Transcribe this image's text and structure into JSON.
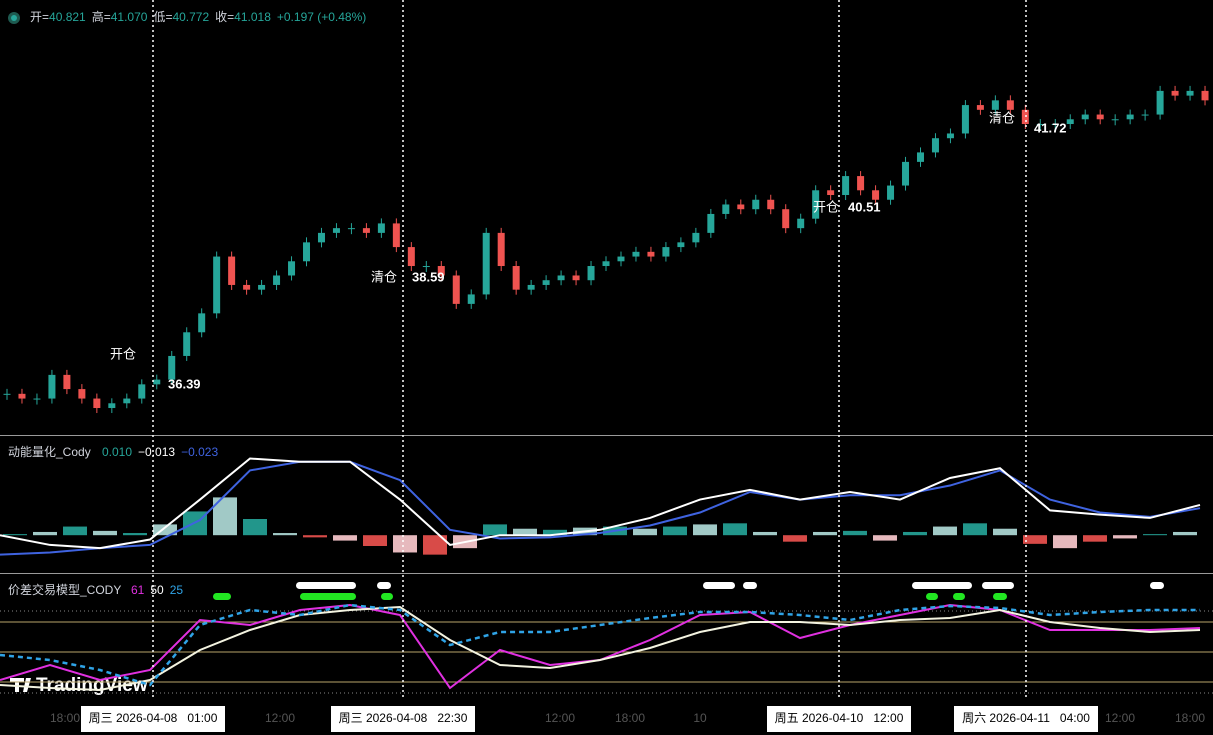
{
  "header": {
    "ohlc": [
      {
        "label": "开=",
        "value": "40.821"
      },
      {
        "label": "高=",
        "value": "41.070"
      },
      {
        "label": "低=",
        "value": "40.772"
      },
      {
        "label": "收=",
        "value": "41.018"
      }
    ],
    "change": "+0.197 (+0.48%)"
  },
  "price_pane": {
    "ylim": [
      35.23,
      44.42
    ],
    "closes": [
      36.1,
      36.0,
      36.0,
      36.5,
      36.2,
      36.0,
      35.8,
      35.9,
      36.0,
      36.3,
      36.4,
      36.9,
      37.4,
      37.8,
      39.0,
      38.4,
      38.3,
      38.4,
      38.6,
      38.9,
      39.3,
      39.5,
      39.6,
      39.6,
      39.5,
      39.7,
      39.2,
      38.8,
      38.8,
      38.6,
      38.0,
      38.2,
      39.5,
      38.8,
      38.3,
      38.4,
      38.5,
      38.6,
      38.5,
      38.8,
      38.9,
      39.0,
      39.1,
      39.0,
      39.2,
      39.3,
      39.5,
      39.9,
      40.1,
      40.0,
      40.2,
      40.0,
      39.6,
      39.8,
      40.4,
      40.3,
      40.7,
      40.4,
      40.2,
      40.5,
      41.0,
      41.2,
      41.5,
      41.6,
      42.2,
      42.1,
      42.3,
      42.1,
      41.8,
      41.8,
      41.8,
      41.9,
      42.0,
      41.9,
      41.9,
      42.0,
      42.0,
      42.5,
      42.4,
      42.5,
      42.3
    ],
    "annotations": [
      {
        "text": "开仓",
        "price": "36.39"
      },
      {
        "text": "清仓",
        "price": "38.59"
      },
      {
        "text": "开仓",
        "price": "40.51"
      },
      {
        "text": "清仓",
        "price": "41.72"
      }
    ]
  },
  "momentum_pane": {
    "title": "动能量化_Cody",
    "readings": [
      "0.010",
      "−0.013",
      "−0.023"
    ],
    "ylim": [
      -0.035,
      0.09
    ],
    "histogram": [
      0.001,
      0.003,
      0.008,
      0.004,
      0.002,
      0.01,
      0.022,
      0.035,
      0.015,
      0.002,
      -0.002,
      -0.005,
      -0.01,
      -0.016,
      -0.018,
      -0.012,
      0.01,
      0.006,
      0.005,
      0.007,
      0.008,
      0.006,
      0.008,
      0.01,
      0.011,
      0.003,
      -0.006,
      0.003,
      0.004,
      -0.005,
      0.003,
      0.008,
      0.011,
      0.006,
      -0.008,
      -0.012,
      -0.006,
      -0.003,
      0.001,
      0.003
    ],
    "dif": [
      0.0,
      -0.009,
      -0.012,
      -0.004,
      0.033,
      0.071,
      0.068,
      0.068,
      0.033,
      -0.009,
      0.0,
      0.0,
      0.005,
      0.016,
      0.033,
      0.042,
      0.033,
      0.04,
      0.033,
      0.053,
      0.062,
      0.023,
      0.019,
      0.016,
      0.028
    ],
    "dea": [
      -0.018,
      -0.016,
      -0.012,
      -0.009,
      0.014,
      0.06,
      0.068,
      0.068,
      0.051,
      0.005,
      -0.003,
      -0.002,
      0.002,
      0.009,
      0.021,
      0.04,
      0.033,
      0.037,
      0.037,
      0.046,
      0.06,
      0.033,
      0.021,
      0.017,
      0.025
    ]
  },
  "spread_pane": {
    "title": "价差交易模型_CODY",
    "readings": [
      "61",
      "50",
      "25"
    ],
    "ylim": [
      0,
      100
    ],
    "levels": [
      91,
      80,
      50,
      20,
      9
    ],
    "magenta": [
      22,
      37,
      22,
      32,
      82,
      77,
      92,
      97,
      87,
      14,
      52,
      37,
      42,
      62,
      87,
      90,
      64,
      77,
      87,
      97,
      92,
      72,
      72,
      72,
      74
    ],
    "white": [
      17,
      14,
      12,
      22,
      52,
      72,
      87,
      92,
      95,
      62,
      37,
      34,
      42,
      54,
      70,
      80,
      80,
      77,
      82,
      84,
      92,
      80,
      74,
      70,
      72
    ],
    "blue": [
      47,
      42,
      32,
      17,
      77,
      92,
      87,
      97,
      92,
      57,
      70,
      70,
      77,
      84,
      90,
      90,
      87,
      82,
      92,
      96,
      94,
      87,
      90,
      92,
      92
    ]
  },
  "time_axis": {
    "labels": [
      "18:00",
      "12:00",
      "12:00",
      "18:00",
      "10",
      "12:00",
      "18:00"
    ],
    "crosshairs": [
      "周三 2026-04-08   01:00",
      "周三 2026-04-08   22:30",
      "周五 2026-04-10   12:00",
      "周六 2026-04-11   04:00"
    ]
  },
  "watermark": "TradingView"
}
